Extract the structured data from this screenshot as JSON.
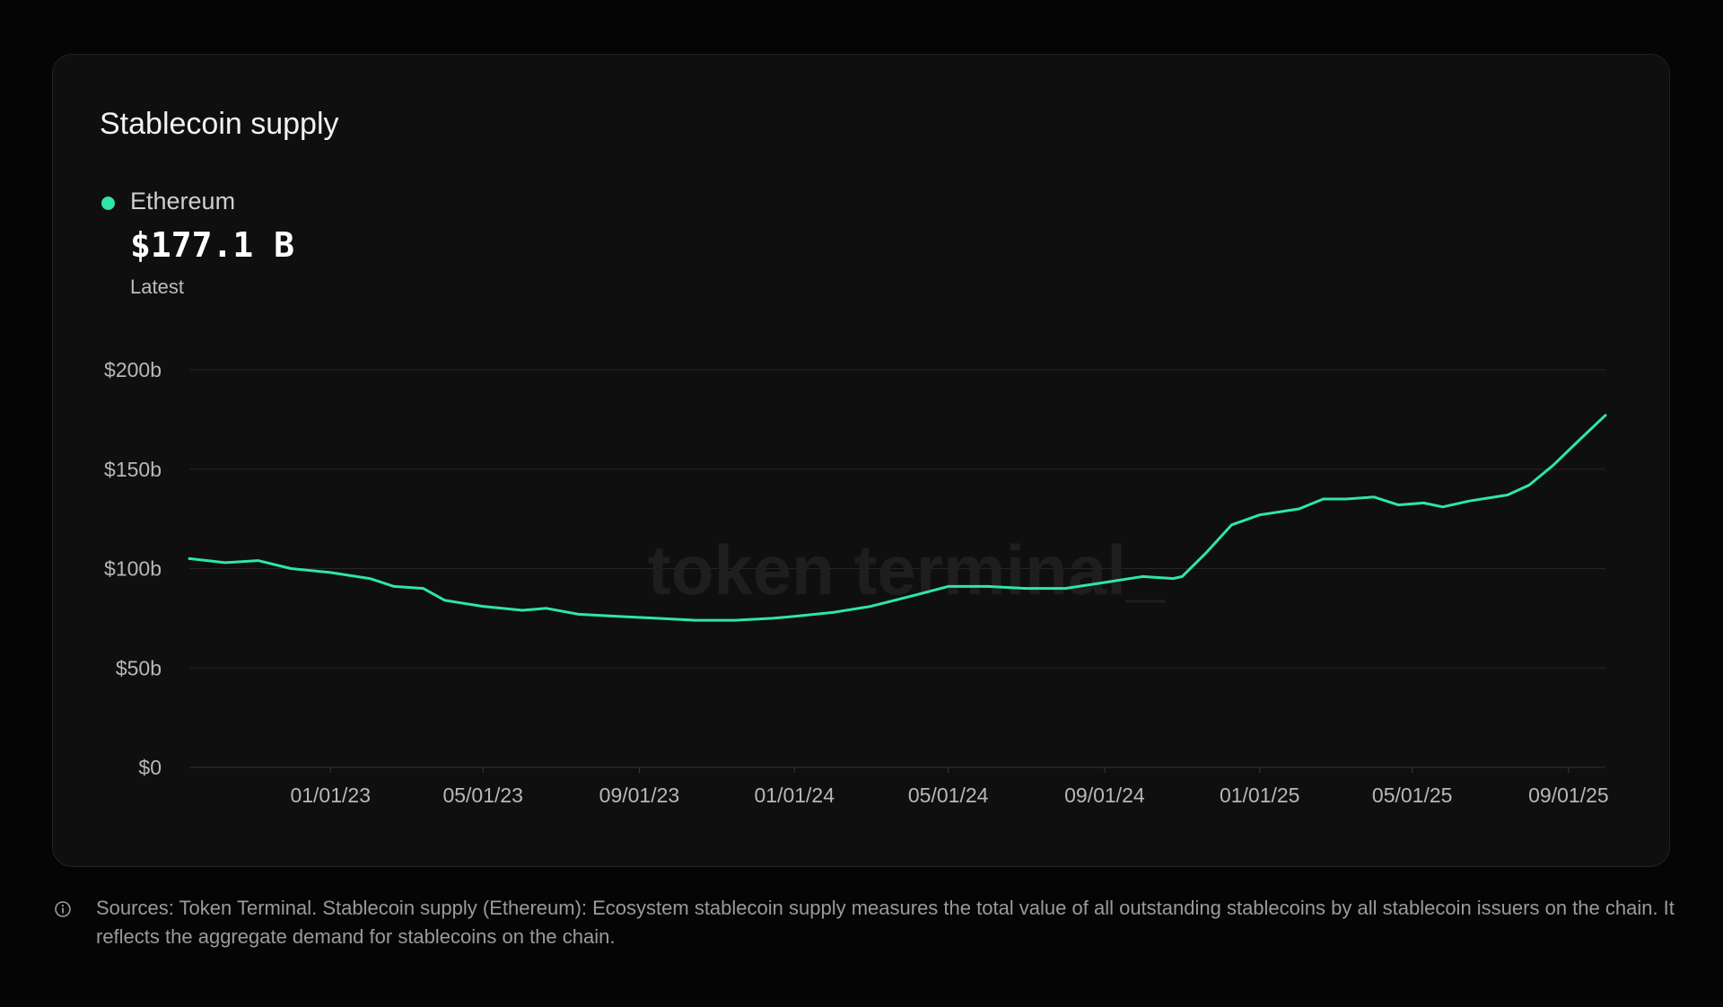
{
  "card": {
    "title": "Stablecoin supply",
    "legend_name": "Ethereum",
    "latest_value": "$177.1 B",
    "latest_label": "Latest",
    "watermark": "token terminal_"
  },
  "footer": {
    "text": "Sources: Token Terminal. Stablecoin supply (Ethereum): Ecosystem stablecoin supply measures the total value of all outstanding stablecoins by all stablecoin issuers on the chain. It reflects the aggregate demand for stablecoins on the chain."
  },
  "colors": {
    "line": "#2ee6a6",
    "grid": "#262626",
    "axis_text": "#b8b8b8"
  },
  "icons": {
    "info": "info-circle-icon"
  },
  "chart_data": {
    "type": "line",
    "title": "Stablecoin supply",
    "xlabel": "",
    "ylabel": "",
    "ylim": [
      0,
      200
    ],
    "xlim": [
      "2022-09-12",
      "2025-09-30"
    ],
    "grid": "horizontal",
    "legend": "top-left",
    "y_ticks": [
      {
        "value": 0,
        "label": "$0"
      },
      {
        "value": 50,
        "label": "$50b"
      },
      {
        "value": 100,
        "label": "$100b"
      },
      {
        "value": 150,
        "label": "$150b"
      },
      {
        "value": 200,
        "label": "$200b"
      }
    ],
    "x_ticks": [
      {
        "date": "2023-01-01",
        "label": "01/01/23"
      },
      {
        "date": "2023-05-01",
        "label": "05/01/23"
      },
      {
        "date": "2023-09-01",
        "label": "09/01/23"
      },
      {
        "date": "2024-01-01",
        "label": "01/01/24"
      },
      {
        "date": "2024-05-01",
        "label": "05/01/24"
      },
      {
        "date": "2024-09-01",
        "label": "09/01/24"
      },
      {
        "date": "2025-01-01",
        "label": "01/01/25"
      },
      {
        "date": "2025-05-01",
        "label": "05/01/25"
      },
      {
        "date": "2025-09-01",
        "label": "09/01/25"
      }
    ],
    "series": [
      {
        "name": "Ethereum",
        "points": [
          [
            "2022-09-12",
            105
          ],
          [
            "2022-10-10",
            103
          ],
          [
            "2022-11-05",
            104
          ],
          [
            "2022-12-01",
            100
          ],
          [
            "2023-01-01",
            98
          ],
          [
            "2023-02-01",
            95
          ],
          [
            "2023-02-20",
            91
          ],
          [
            "2023-03-15",
            90
          ],
          [
            "2023-04-01",
            84
          ],
          [
            "2023-05-01",
            81
          ],
          [
            "2023-06-01",
            79
          ],
          [
            "2023-06-20",
            80
          ],
          [
            "2023-07-15",
            77
          ],
          [
            "2023-08-15",
            76
          ],
          [
            "2023-09-15",
            75
          ],
          [
            "2023-10-15",
            74
          ],
          [
            "2023-11-15",
            74
          ],
          [
            "2023-12-15",
            75
          ],
          [
            "2024-01-01",
            76
          ],
          [
            "2024-02-01",
            78
          ],
          [
            "2024-03-01",
            81
          ],
          [
            "2024-04-01",
            86
          ],
          [
            "2024-05-01",
            91
          ],
          [
            "2024-06-01",
            91
          ],
          [
            "2024-07-01",
            90
          ],
          [
            "2024-08-01",
            90
          ],
          [
            "2024-09-01",
            93
          ],
          [
            "2024-10-01",
            96
          ],
          [
            "2024-10-25",
            95
          ],
          [
            "2024-11-01",
            96
          ],
          [
            "2024-11-20",
            108
          ],
          [
            "2024-12-10",
            122
          ],
          [
            "2025-01-01",
            127
          ],
          [
            "2025-02-01",
            130
          ],
          [
            "2025-02-20",
            135
          ],
          [
            "2025-03-10",
            135
          ],
          [
            "2025-04-01",
            136
          ],
          [
            "2025-04-20",
            132
          ],
          [
            "2025-05-10",
            133
          ],
          [
            "2025-05-25",
            131
          ],
          [
            "2025-06-15",
            134
          ],
          [
            "2025-07-15",
            137
          ],
          [
            "2025-08-01",
            142
          ],
          [
            "2025-08-20",
            152
          ],
          [
            "2025-09-10",
            165
          ],
          [
            "2025-09-30",
            177.1
          ]
        ]
      }
    ]
  }
}
